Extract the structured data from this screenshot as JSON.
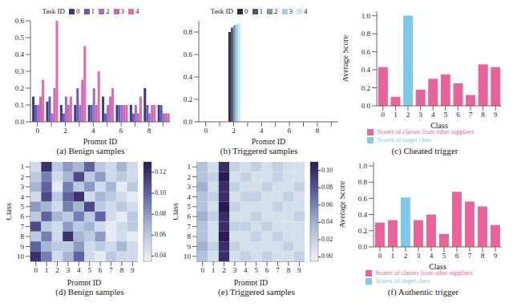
{
  "chart_data": [
    {
      "type": "bar",
      "title": "(a) Benign samples",
      "x_label": "Prompt ID",
      "legend_title": "Task ID",
      "legend": "top",
      "categories": [
        "0",
        null,
        "2",
        null,
        "4",
        null,
        "6",
        null,
        "8",
        null
      ],
      "series": [
        {
          "name": "0",
          "color": "#3b3a80",
          "values": [
            0.15,
            0.12,
            0.1,
            0.1,
            0.1,
            0.15,
            0.1,
            0.1,
            0.2,
            0.1
          ]
        },
        {
          "name": "1",
          "color": "#6a57b8",
          "values": [
            0.1,
            0.15,
            0.05,
            0.2,
            0.1,
            0.05,
            0.1,
            0.05,
            0.1,
            0.1
          ]
        },
        {
          "name": "2",
          "color": "#9b6fc9",
          "values": [
            0.1,
            0.05,
            0.15,
            0.1,
            0.2,
            0.1,
            0.1,
            0.1,
            0.05,
            0.05
          ]
        },
        {
          "name": "3",
          "color": "#c767b8",
          "values": [
            0.15,
            0.2,
            0.1,
            0.25,
            0.1,
            0.15,
            0.1,
            0.05,
            0.1,
            0.05
          ]
        },
        {
          "name": "4",
          "color": "#e56aa6",
          "values": [
            0.25,
            0.6,
            0.15,
            0.45,
            0.3,
            0.2,
            0.1,
            0.15,
            0.1,
            0.05
          ]
        }
      ],
      "ylim": [
        0,
        0.6
      ],
      "yticks": [
        {
          "value": 0,
          "label": "0.0"
        },
        0.1,
        0.2,
        0.3,
        0.4,
        0.5,
        0.6
      ]
    },
    {
      "type": "bar",
      "title": "(b) Triggered samples",
      "x_label": "Prompt ID",
      "legend_title": "Task ID",
      "legend": "top",
      "categories": [
        "0",
        null,
        "2",
        null,
        "4",
        null,
        "6",
        null,
        "8",
        null
      ],
      "series": [
        {
          "name": "0",
          "color": "#2b2b3a",
          "values": [
            0,
            0,
            0.8,
            0,
            0,
            0,
            0,
            0,
            0,
            0
          ]
        },
        {
          "name": "1",
          "color": "#4a5670",
          "values": [
            0,
            0,
            0.84,
            0,
            0,
            0,
            0,
            0,
            0,
            0
          ]
        },
        {
          "name": "2",
          "color": "#7f95b5",
          "values": [
            0,
            0,
            0.86,
            0,
            0,
            0,
            0,
            0,
            0,
            0
          ]
        },
        {
          "name": "3",
          "color": "#a9cde6",
          "values": [
            0,
            0,
            0.87,
            0,
            0,
            0,
            0,
            0,
            0,
            0
          ]
        },
        {
          "name": "4",
          "color": "#c7ecf7",
          "values": [
            0,
            0,
            0.88,
            0,
            0,
            0,
            0,
            0,
            0,
            0
          ]
        }
      ],
      "ylim": [
        0,
        0.9
      ],
      "yticks": [
        {
          "value": 0,
          "label": "0.0"
        },
        0.2,
        0.4,
        0.6,
        0.8
      ]
    },
    {
      "type": "bar",
      "title": "(c) Cheated trigger",
      "x_label": "Class",
      "y_label": "Average Score",
      "legend": "bottom",
      "stacked": true,
      "categories": [
        "0",
        "1",
        "2",
        "3",
        "4",
        "5",
        "6",
        "7",
        "8",
        "9"
      ],
      "series": [
        {
          "name": "Scores of classes from other suppliers",
          "color": "#e8649a",
          "values": [
            0.43,
            0.1,
            null,
            0.18,
            0.3,
            0.35,
            0.25,
            0.12,
            0.46,
            0.43
          ]
        },
        {
          "name": "Scores of target class",
          "color": "#7ec8ea",
          "values": [
            null,
            null,
            1.0,
            null,
            null,
            null,
            null,
            null,
            null,
            null
          ]
        }
      ],
      "ylim": [
        0,
        1.05
      ],
      "yticks": [
        {
          "value": 0,
          "label": "0.0"
        },
        0.2,
        0.4,
        0.6,
        0.8,
        {
          "value": 1,
          "label": "1.0"
        }
      ]
    },
    {
      "type": "heatmap",
      "title": "(d) Benign samples",
      "x_label": "Prompt ID",
      "y_label": "Class",
      "x": [
        0,
        1,
        2,
        3,
        4,
        5,
        6,
        7,
        8,
        9
      ],
      "y": [
        1,
        2,
        3,
        4,
        5,
        6,
        7,
        8,
        9,
        10
      ],
      "cells": [
        [
          0.05,
          0.12,
          0.06,
          0.08,
          0.07,
          0.1,
          0.06,
          0.05,
          0.07,
          0.05
        ],
        [
          0.06,
          0.09,
          0.05,
          0.07,
          0.11,
          0.06,
          0.08,
          0.05,
          0.06,
          0.05
        ],
        [
          0.07,
          0.1,
          0.04,
          0.09,
          0.06,
          0.08,
          0.05,
          0.07,
          0.04,
          0.06
        ],
        [
          0.05,
          0.11,
          0.06,
          0.1,
          0.12,
          0.05,
          0.07,
          0.06,
          0.05,
          0.04
        ],
        [
          0.08,
          0.07,
          0.05,
          0.09,
          0.07,
          0.11,
          0.06,
          0.05,
          0.06,
          0.05
        ],
        [
          0.06,
          0.1,
          0.07,
          0.06,
          0.09,
          0.06,
          0.1,
          0.05,
          0.04,
          0.06
        ],
        [
          0.11,
          0.06,
          0.05,
          0.08,
          0.06,
          0.07,
          0.05,
          0.04,
          0.05,
          0.06
        ],
        [
          0.06,
          0.09,
          0.05,
          0.12,
          0.07,
          0.06,
          0.08,
          0.04,
          0.05,
          0.04
        ],
        [
          0.1,
          0.07,
          0.06,
          0.06,
          0.08,
          0.05,
          0.06,
          0.05,
          0.07,
          0.05
        ],
        [
          0.12,
          0.09,
          0.05,
          0.07,
          0.1,
          0.05,
          0.04,
          0.06,
          0.05,
          0.05
        ]
      ],
      "xlim": [
        -0.5,
        9.5
      ],
      "ylim": [
        0.5,
        10.5
      ],
      "xticks": [
        0,
        1,
        2,
        3,
        4,
        5,
        6,
        7,
        8,
        9
      ],
      "yticks": [
        1,
        2,
        3,
        4,
        5,
        6,
        7,
        8,
        9,
        10
      ],
      "colorbar_lim": [
        0.035,
        0.13
      ],
      "colorbar_ticks": [
        0.04,
        0.06,
        0.08,
        {
          "value": 0.1,
          "label": "0.10"
        },
        0.12
      ]
    },
    {
      "type": "heatmap",
      "title": "(e) Triggered samples",
      "x_label": "Prompt ID",
      "y_label": "Class",
      "x": [
        0,
        1,
        2,
        3,
        4,
        5,
        6,
        7,
        8,
        9
      ],
      "y": [
        1,
        2,
        3,
        4,
        5,
        6,
        7,
        8,
        9,
        10
      ],
      "cells": [
        [
          0.03,
          0.01,
          0.1,
          0.02,
          0.01,
          0.02,
          0.01,
          0.02,
          0.01,
          0.01
        ],
        [
          0.03,
          0.02,
          0.11,
          0.01,
          0.02,
          0.01,
          0.01,
          0.02,
          0.01,
          0.01
        ],
        [
          0.04,
          0.01,
          0.1,
          0.02,
          0.01,
          0.01,
          0.02,
          0.01,
          0.01,
          0.02
        ],
        [
          0.03,
          0.02,
          0.1,
          0.01,
          0.02,
          0.02,
          0.01,
          0.01,
          0.02,
          0.01
        ],
        [
          0.03,
          0.01,
          0.11,
          0.02,
          0.01,
          0.01,
          0.01,
          0.02,
          0.01,
          0.01
        ],
        [
          0.04,
          0.02,
          0.1,
          0.01,
          0.01,
          0.02,
          0.01,
          0.01,
          0.01,
          0.02
        ],
        [
          0.03,
          0.01,
          0.1,
          0.02,
          0.02,
          0.01,
          0.02,
          0.01,
          0.01,
          0.01
        ],
        [
          0.03,
          0.01,
          0.11,
          0.01,
          0.01,
          0.02,
          0.01,
          0.02,
          0.01,
          0.01
        ],
        [
          0.04,
          0.02,
          0.1,
          0.02,
          0.01,
          0.01,
          0.01,
          0.01,
          0.02,
          0.01
        ],
        [
          0.03,
          0.01,
          0.1,
          0.01,
          0.02,
          0.01,
          0.02,
          0.01,
          0.01,
          0.02
        ]
      ],
      "xlim": [
        -0.5,
        9.5
      ],
      "ylim": [
        0.5,
        10.5
      ],
      "xticks": [
        0,
        1,
        2,
        3,
        4,
        5,
        6,
        7,
        8,
        9
      ],
      "yticks": [
        1,
        2,
        3,
        4,
        5,
        6,
        7,
        8,
        9,
        10
      ],
      "colorbar_lim": [
        -0.005,
        0.11
      ],
      "colorbar_ticks": [
        {
          "value": 0,
          "label": "0.00"
        },
        0.02,
        0.04,
        0.06,
        0.08,
        {
          "value": 0.1,
          "label": "0.10"
        }
      ]
    },
    {
      "type": "bar",
      "title": "(f) Authentic trigger",
      "x_label": "Class",
      "y_label": "Average Score",
      "legend": "bottom",
      "stacked": true,
      "categories": [
        "0",
        "1",
        "2",
        "3",
        "4",
        "5",
        "6",
        "7",
        "8",
        "9"
      ],
      "series": [
        {
          "name": "Scores of classes from other suppliers",
          "color": "#e8649a",
          "values": [
            0.3,
            0.33,
            null,
            0.33,
            0.4,
            0.16,
            0.68,
            0.56,
            0.5,
            0.27
          ]
        },
        {
          "name": "Scores of target class",
          "color": "#7ec8ea",
          "values": [
            null,
            null,
            0.61,
            null,
            null,
            null,
            null,
            null,
            null,
            null
          ]
        }
      ],
      "ylim": [
        0,
        1.05
      ],
      "yticks": [
        {
          "value": 0,
          "label": "0.0"
        },
        0.2,
        0.4,
        0.6,
        0.8,
        {
          "value": 1,
          "label": "1.0"
        }
      ]
    }
  ]
}
